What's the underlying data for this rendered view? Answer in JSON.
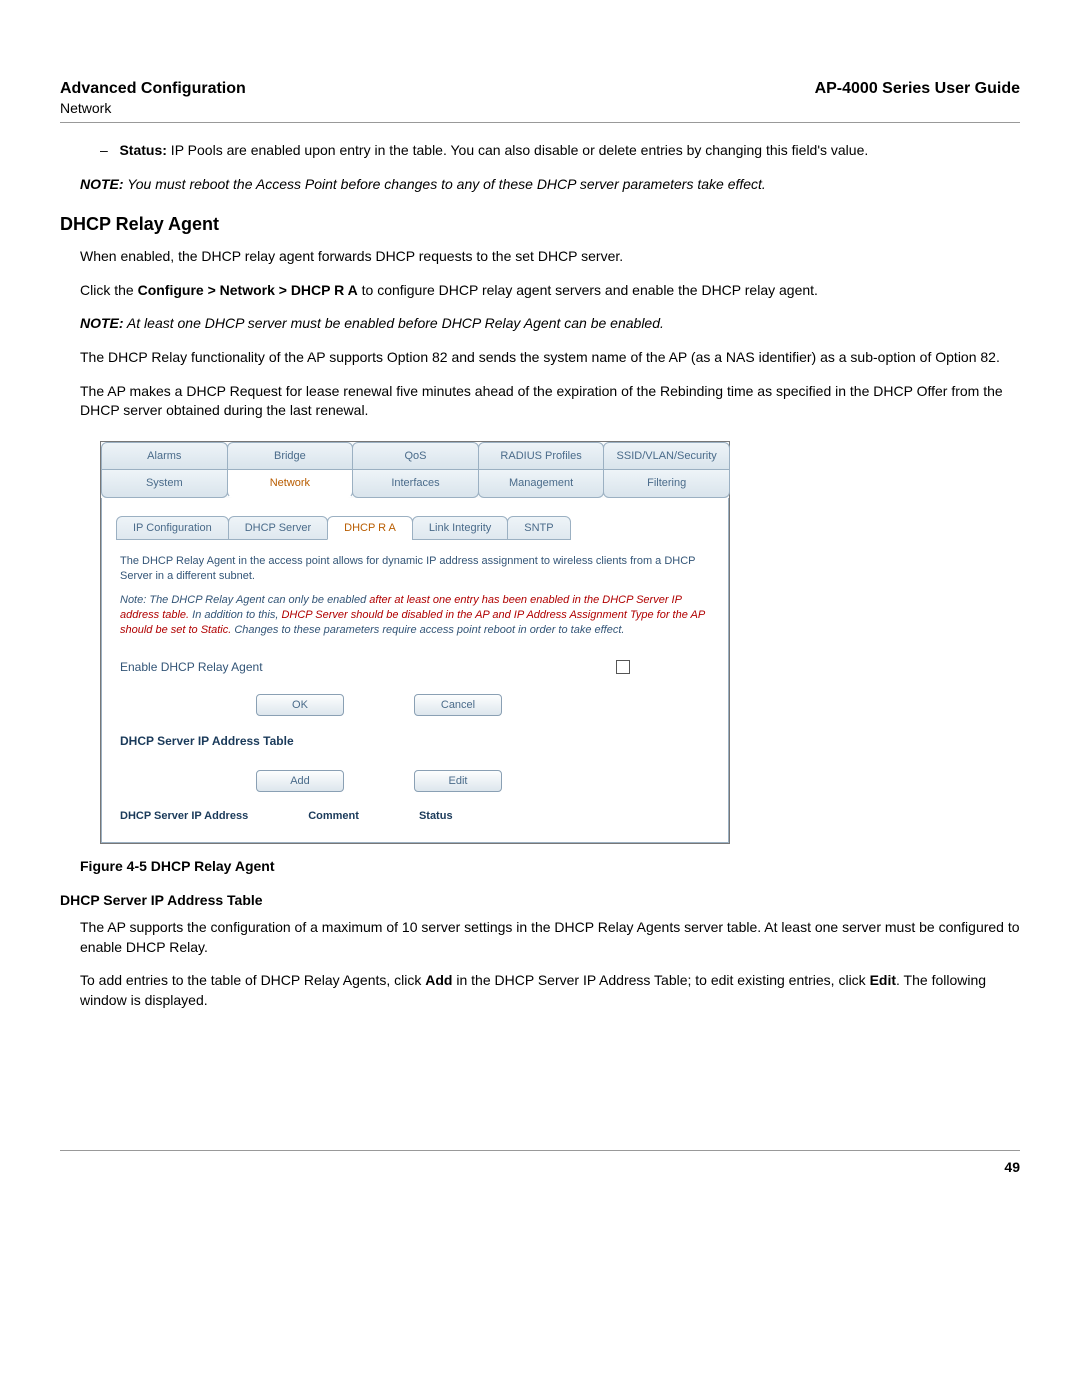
{
  "header": {
    "left_title": "Advanced Configuration",
    "left_sub": "Network",
    "right_title": "AP-4000 Series User Guide"
  },
  "bullet": {
    "dash": "–",
    "label": "Status:",
    "text": " IP Pools are enabled upon entry in the table. You can also disable or delete entries by changing this field's value."
  },
  "note1": {
    "label": "NOTE:",
    "text": "  You must reboot the Access Point before changes to any of these DHCP server parameters take effect."
  },
  "section_title": "DHCP Relay Agent",
  "para1": "When enabled, the DHCP relay agent forwards DHCP requests to the set DHCP server.",
  "para2_pre": "Click the ",
  "para2_bold": "Configure > Network > DHCP R A",
  "para2_post": " to configure DHCP relay agent servers and enable the DHCP relay agent.",
  "note2": {
    "label": "NOTE:",
    "text": "  At least one DHCP server must be enabled before DHCP Relay Agent can be enabled."
  },
  "para3": "The DHCP Relay functionality of the AP supports Option 82 and sends the system name of the AP (as a NAS identifier) as a sub-option of Option 82.",
  "para4": "The AP makes a DHCP Request for lease renewal five minutes ahead of the expiration of the Rebinding time as specified in the DHCP Offer from the DHCP server obtained during the last renewal.",
  "screenshot": {
    "top_tabs": [
      "Alarms",
      "Bridge",
      "QoS",
      "RADIUS Profiles",
      "SSID/VLAN/Security"
    ],
    "bottom_tabs": [
      "System",
      "Network",
      "Interfaces",
      "Management",
      "Filtering"
    ],
    "bottom_active_index": 1,
    "sub_tabs": [
      "IP Configuration",
      "DHCP Server",
      "DHCP R A",
      "Link Integrity",
      "SNTP"
    ],
    "sub_active_index": 2,
    "desc": "The DHCP Relay Agent in the access point allows for dynamic IP address assignment to wireless clients from a DHCP Server in a different subnet.",
    "notetext_pre": "Note: The DHCP Relay Agent can only be enabled ",
    "notetext_red1": "after at least one entry has been enabled in the DHCP Server IP address table.",
    "notetext_mid": " In addition to this, ",
    "notetext_red2": "DHCP Server should be disabled in the AP and IP Address Assignment Type for the AP should be set to Static.",
    "notetext_post": " Changes to these parameters require access point reboot in order to take effect.",
    "enable_label": "Enable DHCP Relay Agent",
    "btn_ok": "OK",
    "btn_cancel": "Cancel",
    "table_title": "DHCP Server IP Address Table",
    "btn_add": "Add",
    "btn_edit": "Edit",
    "col1": "DHCP Server IP Address",
    "col2": "Comment",
    "col3": "Status"
  },
  "figure_caption": "Figure 4-5 DHCP Relay Agent",
  "subsection_title": "DHCP Server IP Address Table",
  "para5": "The AP supports the configuration of a maximum of 10 server settings in the DHCP Relay Agents server table. At least one server must be configured to enable DHCP Relay.",
  "para6_pre": "To add entries to the table of DHCP Relay Agents, click ",
  "para6_b1": "Add",
  "para6_mid": " in the DHCP Server IP Address Table; to edit existing entries, click ",
  "para6_b2": "Edit",
  "para6_post": ". The following window is displayed.",
  "page_number": "49",
  "colors": {
    "link_blue": "#4a6b8a",
    "active_orange": "#b85c00",
    "note_red": "#b00000",
    "panel_text": "#335577"
  }
}
